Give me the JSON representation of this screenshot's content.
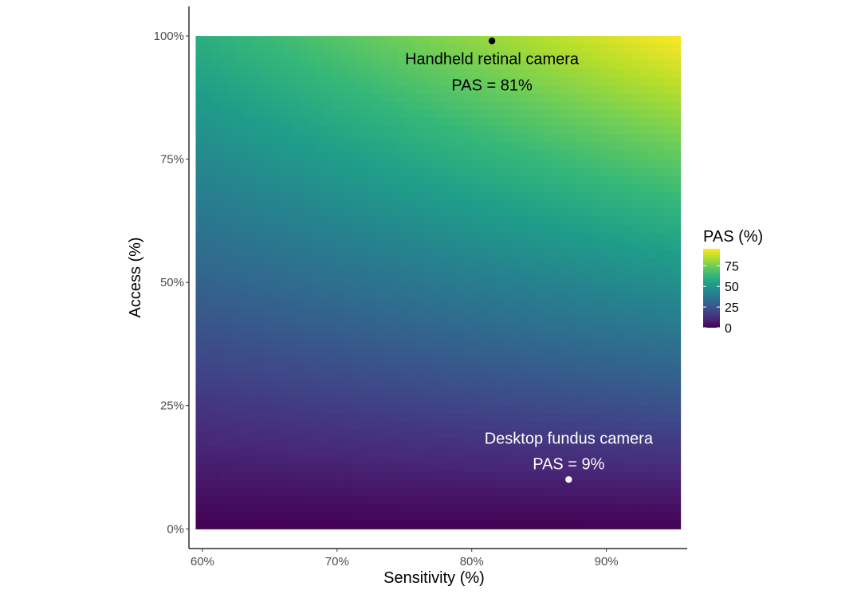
{
  "chart_data": {
    "type": "heatmap",
    "title": "",
    "xlabel": "Sensitivity (%)",
    "ylabel": "Access (%)",
    "xlim": [
      0.59,
      0.96
    ],
    "ylim": [
      -0.04,
      1.06
    ],
    "x_range": [
      0.595,
      0.955
    ],
    "y_range": [
      0.0,
      1.0
    ],
    "x_ticks": [
      {
        "value": 0.6,
        "label": "60%"
      },
      {
        "value": 0.7,
        "label": "70%"
      },
      {
        "value": 0.8,
        "label": "80%"
      },
      {
        "value": 0.9,
        "label": "90%"
      }
    ],
    "y_ticks": [
      {
        "value": 0.0,
        "label": "0%"
      },
      {
        "value": 0.25,
        "label": "25%"
      },
      {
        "value": 0.5,
        "label": "50%"
      },
      {
        "value": 0.75,
        "label": "75%"
      },
      {
        "value": 1.0,
        "label": "100%"
      }
    ],
    "fill_variable": "PAS = Sensitivity × Access",
    "colorscale": "viridis",
    "colorbar": {
      "title": "PAS (%)",
      "range": [
        0,
        95.5
      ],
      "ticks": [
        {
          "value": 0,
          "label": "0"
        },
        {
          "value": 25,
          "label": "25"
        },
        {
          "value": 50,
          "label": "50"
        },
        {
          "value": 75,
          "label": "75"
        }
      ],
      "placement": "right"
    },
    "points": [
      {
        "x": 0.815,
        "y": 0.99,
        "color": "#000000",
        "label_line1": "Handheld retinal camera",
        "label_line2": "PAS = 81%",
        "label_color": "#000000"
      },
      {
        "x": 0.872,
        "y": 0.1,
        "color": "#ffffff",
        "label_line1": "Desktop fundus camera",
        "label_line2": "PAS = 9%",
        "label_color": "#ffffff"
      }
    ],
    "grid": false,
    "legend_placement": "right"
  }
}
